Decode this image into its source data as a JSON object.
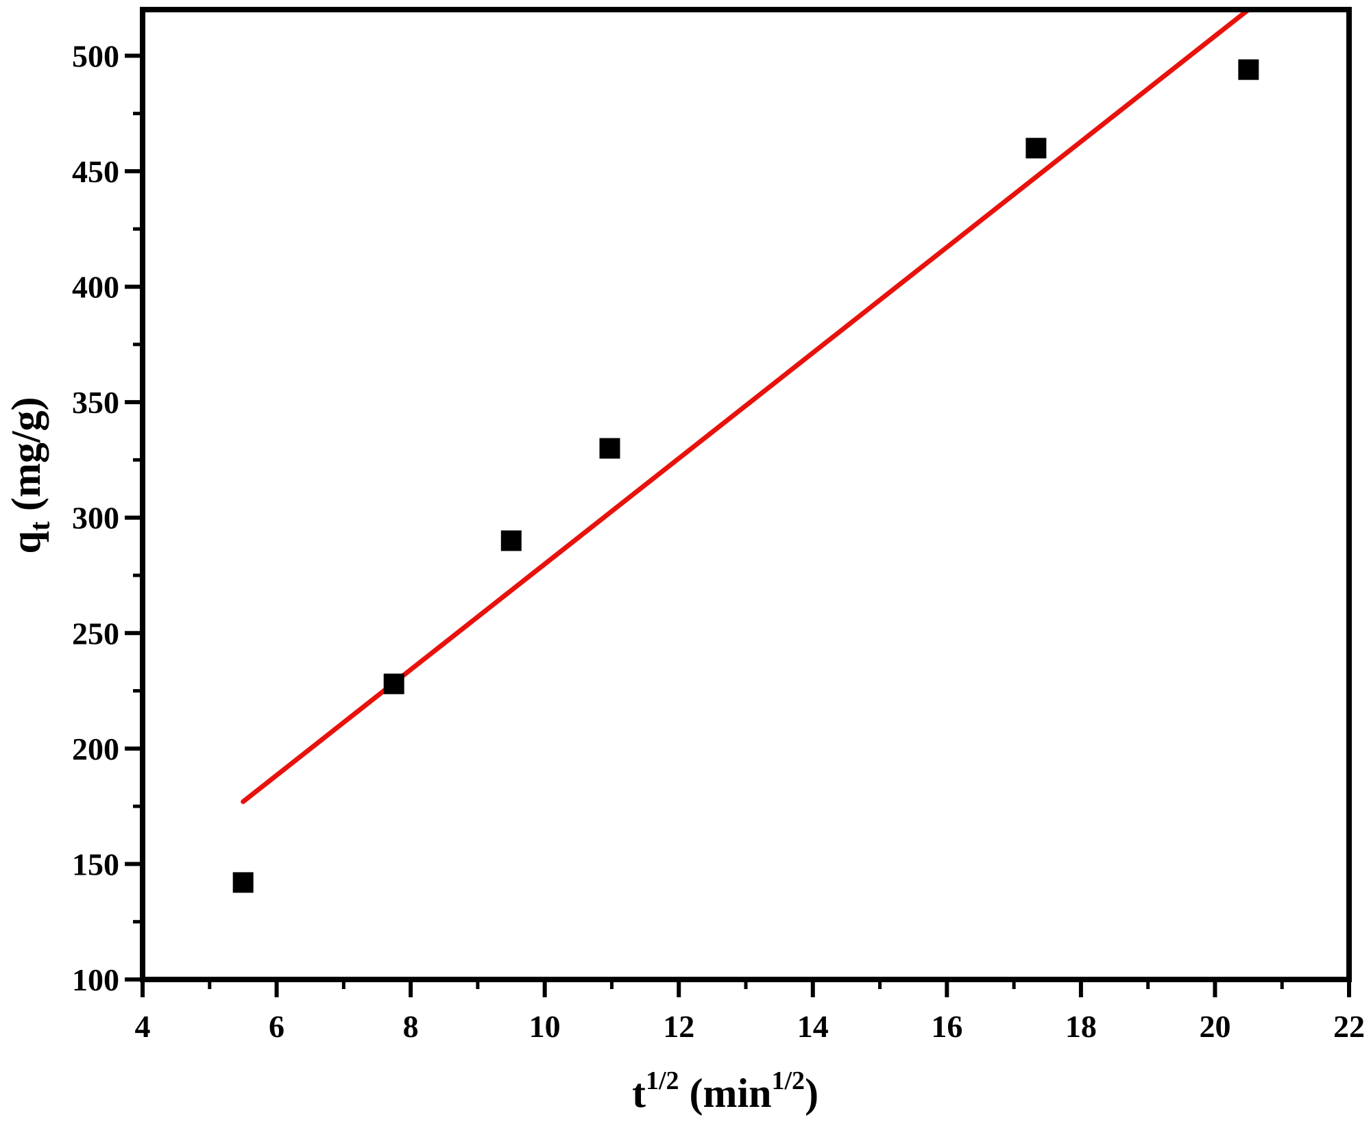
{
  "chart_data": {
    "type": "scatter",
    "xlabel": {
      "base": "t",
      "sup": "1/2",
      "mid": " (min",
      "sup2": "1/2",
      "end": ")"
    },
    "ylabel": {
      "base": "q",
      "sub": "t",
      "rest": " (mg/g)"
    },
    "xlim": [
      4,
      22
    ],
    "ylim": [
      100,
      520
    ],
    "x_ticks": [
      4,
      6,
      8,
      10,
      12,
      14,
      16,
      18,
      20,
      22
    ],
    "y_ticks": [
      100,
      150,
      200,
      250,
      300,
      350,
      400,
      450,
      500
    ],
    "grid": false,
    "legend": "none",
    "series": [
      {
        "type": "scatter",
        "marker": "square",
        "color": "#000000",
        "points": [
          {
            "x": 5.5,
            "y": 142
          },
          {
            "x": 7.75,
            "y": 228
          },
          {
            "x": 9.5,
            "y": 290
          },
          {
            "x": 10.97,
            "y": 330
          },
          {
            "x": 17.33,
            "y": 460
          },
          {
            "x": 20.5,
            "y": 494
          }
        ]
      },
      {
        "type": "line",
        "color": "#e8120c",
        "points": [
          {
            "x": 5.5,
            "y": 177
          },
          {
            "x": 20.5,
            "y": 520
          }
        ]
      }
    ]
  }
}
